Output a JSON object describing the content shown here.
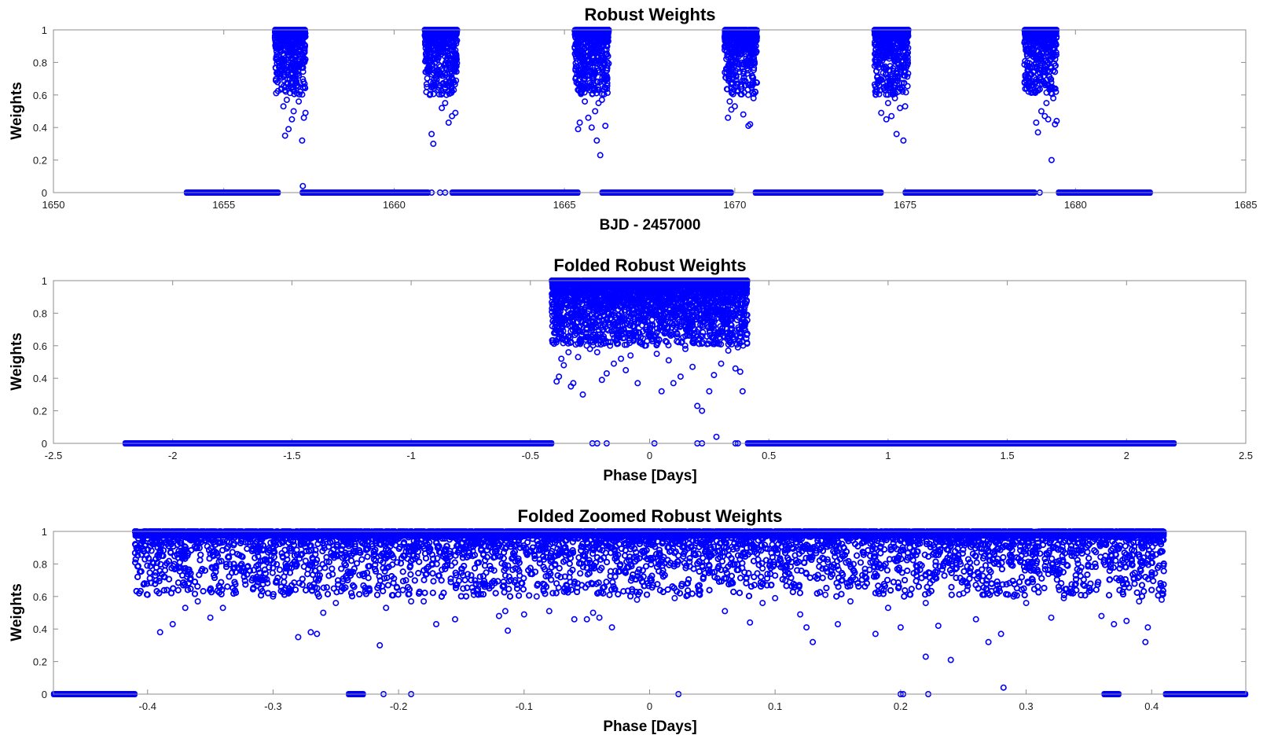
{
  "chart_data": [
    {
      "type": "scatter",
      "title": "Robust Weights",
      "xlabel": "BJD - 2457000",
      "ylabel": "Weights",
      "xlim": [
        1650,
        1685
      ],
      "ylim": [
        0,
        1
      ],
      "xticks": [
        1650,
        1655,
        1660,
        1665,
        1670,
        1675,
        1680,
        1685
      ],
      "xtick_labels": [
        "1650",
        "1655",
        "1660",
        "1665",
        "1670",
        "1675",
        "1680",
        "1685"
      ],
      "yticks": [
        0,
        0.2,
        0.4,
        0.6,
        0.8,
        1
      ],
      "ytick_labels": [
        "0",
        "0.2",
        "0.4",
        "0.6",
        "0.8",
        "1"
      ],
      "grid": false,
      "marker": "circle-open",
      "color": "#0000ff",
      "zero_segments": [
        [
          1653.9,
          1656.6
        ],
        [
          1657.3,
          1661.0
        ],
        [
          1661.7,
          1665.4
        ],
        [
          1666.1,
          1669.9
        ],
        [
          1670.6,
          1674.3
        ],
        [
          1675.0,
          1678.8
        ],
        [
          1679.5,
          1682.2
        ]
      ],
      "series": [
        {
          "values": [
            [
              1656.8,
              0.35
            ],
            [
              1656.9,
              0.39
            ],
            [
              1657.0,
              0.45
            ],
            [
              1657.05,
              0.5
            ],
            [
              1657.3,
              0.32
            ],
            [
              1657.35,
              0.46
            ],
            [
              1657.4,
              0.49
            ],
            [
              1656.75,
              0.53
            ],
            [
              1656.85,
              0.57
            ],
            [
              1657.2,
              0.56
            ],
            [
              1657.25,
              0.62
            ],
            [
              1656.9,
              0.64
            ],
            [
              1657.1,
              0.67
            ],
            [
              1657.2,
              0.72
            ],
            [
              1657.32,
              0.04
            ],
            [
              1661.1,
              0.36
            ],
            [
              1661.15,
              0.3
            ],
            [
              1661.6,
              0.43
            ],
            [
              1661.7,
              0.47
            ],
            [
              1661.8,
              0.49
            ],
            [
              1661.4,
              0.52
            ],
            [
              1661.5,
              0.55
            ],
            [
              1661.05,
              0.6
            ],
            [
              1661.3,
              0.63
            ],
            [
              1661.75,
              0.63
            ],
            [
              1661.1,
              0.0
            ],
            [
              1661.35,
              0.0
            ],
            [
              1661.5,
              0.0
            ],
            [
              1665.4,
              0.39
            ],
            [
              1665.45,
              0.43
            ],
            [
              1665.95,
              0.32
            ],
            [
              1666.05,
              0.23
            ],
            [
              1666.2,
              0.41
            ],
            [
              1665.8,
              0.4
            ],
            [
              1665.7,
              0.46
            ],
            [
              1665.9,
              0.5
            ],
            [
              1666.0,
              0.55
            ],
            [
              1665.6,
              0.56
            ],
            [
              1666.1,
              0.57
            ],
            [
              1665.5,
              0.62
            ],
            [
              1669.8,
              0.46
            ],
            [
              1669.9,
              0.51
            ],
            [
              1670.0,
              0.53
            ],
            [
              1670.25,
              0.48
            ],
            [
              1670.4,
              0.41
            ],
            [
              1670.45,
              0.42
            ],
            [
              1670.55,
              0.58
            ],
            [
              1670.6,
              0.62
            ],
            [
              1669.85,
              0.56
            ],
            [
              1674.3,
              0.49
            ],
            [
              1674.45,
              0.45
            ],
            [
              1674.6,
              0.47
            ],
            [
              1674.75,
              0.36
            ],
            [
              1674.95,
              0.32
            ],
            [
              1674.85,
              0.52
            ],
            [
              1675.0,
              0.53
            ],
            [
              1674.5,
              0.55
            ],
            [
              1674.7,
              0.58
            ],
            [
              1674.4,
              0.63
            ],
            [
              1678.9,
              0.37
            ],
            [
              1678.85,
              0.43
            ],
            [
              1679.3,
              0.2
            ],
            [
              1679.4,
              0.42
            ],
            [
              1679.45,
              0.44
            ],
            [
              1679.1,
              0.47
            ],
            [
              1679.2,
              0.45
            ],
            [
              1679.0,
              0.5
            ],
            [
              1679.15,
              0.55
            ],
            [
              1679.35,
              0.58
            ],
            [
              1678.8,
              0.62
            ],
            [
              1678.95,
              0.0
            ]
          ]
        }
      ],
      "dense_clusters": [
        {
          "x": [
            1656.5,
            1657.4
          ],
          "weights_min": 0.6,
          "weights_max": 1.0
        },
        {
          "x": [
            1660.9,
            1661.85
          ],
          "weights_min": 0.6,
          "weights_max": 1.0
        },
        {
          "x": [
            1665.3,
            1666.3
          ],
          "weights_min": 0.6,
          "weights_max": 1.0
        },
        {
          "x": [
            1669.7,
            1670.65
          ],
          "weights_min": 0.6,
          "weights_max": 1.0
        },
        {
          "x": [
            1674.1,
            1675.1
          ],
          "weights_min": 0.6,
          "weights_max": 1.0
        },
        {
          "x": [
            1678.5,
            1679.45
          ],
          "weights_min": 0.6,
          "weights_max": 1.0
        }
      ]
    },
    {
      "type": "scatter",
      "title": "Folded Robust Weights",
      "xlabel": "Phase [Days]",
      "ylabel": "Weights",
      "xlim": [
        -2.5,
        2.5
      ],
      "ylim": [
        0,
        1
      ],
      "xticks": [
        -2.5,
        -2,
        -1.5,
        -1,
        -0.5,
        0,
        0.5,
        1,
        1.5,
        2,
        2.5
      ],
      "xtick_labels": [
        "-2.5",
        "-2",
        "-1.5",
        "-1",
        "-0.5",
        "0",
        "0.5",
        "1",
        "1.5",
        "2",
        "2.5"
      ],
      "yticks": [
        0,
        0.2,
        0.4,
        0.6,
        0.8,
        1
      ],
      "ytick_labels": [
        "0",
        "0.2",
        "0.4",
        "0.6",
        "0.8",
        "1"
      ],
      "grid": false,
      "marker": "circle-open",
      "color": "#0000ff",
      "zero_segments": [
        [
          -2.2,
          -0.41
        ],
        [
          0.41,
          2.2
        ]
      ],
      "series": [
        {
          "values": [
            [
              -0.39,
              0.38
            ],
            [
              -0.38,
              0.41
            ],
            [
              -0.36,
              0.48
            ],
            [
              -0.33,
              0.35
            ],
            [
              -0.32,
              0.37
            ],
            [
              -0.28,
              0.3
            ],
            [
              -0.2,
              0.39
            ],
            [
              -0.18,
              0.43
            ],
            [
              -0.15,
              0.49
            ],
            [
              -0.1,
              0.45
            ],
            [
              -0.05,
              0.37
            ],
            [
              0.05,
              0.32
            ],
            [
              0.1,
              0.37
            ],
            [
              0.13,
              0.41
            ],
            [
              0.2,
              0.23
            ],
            [
              0.22,
              0.2
            ],
            [
              0.25,
              0.32
            ],
            [
              0.27,
              0.42
            ],
            [
              0.3,
              0.49
            ],
            [
              0.36,
              0.46
            ],
            [
              0.39,
              0.32
            ],
            [
              0.38,
              0.44
            ],
            [
              -0.37,
              0.52
            ],
            [
              -0.34,
              0.56
            ],
            [
              -0.3,
              0.53
            ],
            [
              -0.25,
              0.58
            ],
            [
              -0.22,
              0.56
            ],
            [
              -0.12,
              0.52
            ],
            [
              -0.08,
              0.54
            ],
            [
              -0.02,
              0.6
            ],
            [
              0.03,
              0.55
            ],
            [
              0.08,
              0.51
            ],
            [
              0.15,
              0.58
            ],
            [
              0.18,
              0.47
            ],
            [
              0.25,
              0.63
            ],
            [
              0.33,
              0.57
            ],
            [
              0.37,
              0.59
            ],
            [
              -0.24,
              0.0
            ],
            [
              -0.22,
              0.0
            ],
            [
              -0.18,
              0.0
            ],
            [
              0.02,
              0.0
            ],
            [
              0.2,
              0.0
            ],
            [
              0.22,
              0.0
            ],
            [
              0.36,
              0.0
            ],
            [
              0.37,
              0.0
            ],
            [
              0.28,
              0.04
            ]
          ]
        }
      ],
      "dense_clusters": [
        {
          "x": [
            -0.41,
            0.41
          ],
          "weights_min": 0.6,
          "weights_max": 1.0
        }
      ]
    },
    {
      "type": "scatter",
      "title": "Folded Zoomed Robust Weights",
      "xlabel": "Phase [Days]",
      "ylabel": "Weights",
      "xlim": [
        -0.475,
        0.475
      ],
      "ylim": [
        0,
        1
      ],
      "xticks": [
        -0.4,
        -0.3,
        -0.2,
        -0.1,
        0,
        0.1,
        0.2,
        0.3,
        0.4
      ],
      "xtick_labels": [
        "-0.4",
        "-0.3",
        "-0.2",
        "-0.1",
        "0",
        "0.1",
        "0.2",
        "0.3",
        "0.4"
      ],
      "yticks": [
        0,
        0.2,
        0.4,
        0.6,
        0.8,
        1
      ],
      "ytick_labels": [
        "0",
        "0.2",
        "0.4",
        "0.6",
        "0.8",
        "1"
      ],
      "grid": false,
      "marker": "circle-open",
      "color": "#0000ff",
      "zero_segments": [
        [
          -0.475,
          -0.41
        ],
        [
          -0.24,
          -0.228
        ],
        [
          0.362,
          0.374
        ],
        [
          0.411,
          0.475
        ]
      ],
      "series": [
        {
          "values": [
            [
              -0.39,
              0.38
            ],
            [
              -0.38,
              0.43
            ],
            [
              -0.37,
              0.53
            ],
            [
              -0.35,
              0.47
            ],
            [
              -0.34,
              0.53
            ],
            [
              -0.28,
              0.35
            ],
            [
              -0.27,
              0.38
            ],
            [
              -0.265,
              0.37
            ],
            [
              -0.26,
              0.5
            ],
            [
              -0.215,
              0.3
            ],
            [
              -0.21,
              0.53
            ],
            [
              -0.18,
              0.57
            ],
            [
              -0.17,
              0.43
            ],
            [
              -0.155,
              0.46
            ],
            [
              -0.12,
              0.48
            ],
            [
              -0.115,
              0.51
            ],
            [
              -0.113,
              0.39
            ],
            [
              -0.1,
              0.49
            ],
            [
              -0.08,
              0.51
            ],
            [
              -0.06,
              0.46
            ],
            [
              -0.05,
              0.46
            ],
            [
              -0.045,
              0.5
            ],
            [
              -0.04,
              0.47
            ],
            [
              -0.03,
              0.41
            ],
            [
              0.02,
              0.59
            ],
            [
              0.06,
              0.51
            ],
            [
              0.08,
              0.44
            ],
            [
              0.1,
              0.59
            ],
            [
              0.12,
              0.49
            ],
            [
              0.125,
              0.41
            ],
            [
              0.13,
              0.32
            ],
            [
              0.15,
              0.43
            ],
            [
              0.18,
              0.37
            ],
            [
              0.19,
              0.53
            ],
            [
              0.2,
              0.41
            ],
            [
              0.22,
              0.23
            ],
            [
              0.23,
              0.42
            ],
            [
              0.24,
              0.21
            ],
            [
              0.26,
              0.46
            ],
            [
              0.27,
              0.32
            ],
            [
              0.28,
              0.37
            ],
            [
              0.3,
              0.56
            ],
            [
              0.32,
              0.47
            ],
            [
              0.36,
              0.48
            ],
            [
              0.37,
              0.43
            ],
            [
              0.38,
              0.45
            ],
            [
              0.395,
              0.32
            ],
            [
              0.397,
              0.41
            ],
            [
              -0.4,
              0.61
            ],
            [
              -0.36,
              0.57
            ],
            [
              -0.3,
              0.6
            ],
            [
              -0.25,
              0.56
            ],
            [
              -0.19,
              0.57
            ],
            [
              -0.14,
              0.61
            ],
            [
              -0.09,
              0.6
            ],
            [
              -0.01,
              0.58
            ],
            [
              0.04,
              0.61
            ],
            [
              0.09,
              0.56
            ],
            [
              0.14,
              0.61
            ],
            [
              0.16,
              0.57
            ],
            [
              0.22,
              0.56
            ],
            [
              0.25,
              0.62
            ],
            [
              0.29,
              0.6
            ],
            [
              0.33,
              0.59
            ],
            [
              0.35,
              0.63
            ],
            [
              0.39,
              0.57
            ],
            [
              0.408,
              0.58
            ],
            [
              -0.212,
              0.0
            ],
            [
              -0.19,
              0.0
            ],
            [
              0.023,
              0.0
            ],
            [
              0.2,
              0.0
            ],
            [
              0.202,
              0.0
            ],
            [
              0.222,
              0.0
            ],
            [
              0.282,
              0.04
            ]
          ]
        }
      ],
      "dense_clusters": [
        {
          "x": [
            -0.41,
            0.41
          ],
          "weights_min": 0.6,
          "weights_max": 1.0
        }
      ]
    }
  ]
}
